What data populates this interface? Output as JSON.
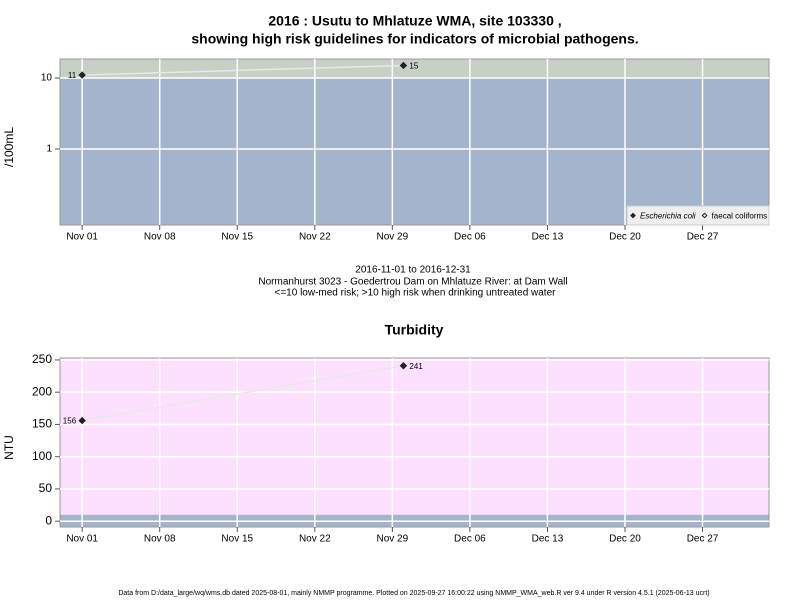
{
  "header": {
    "title": [
      "2016 : Usutu to Mhlatuze WMA, site 103330 ,",
      "showing high risk guidelines for indicators of microbial pathogens."
    ],
    "caption": [
      "2016-11-01 to 2016-12-31",
      "Normanhurst 3023 - Goedertrou Dam on Mhlatuze River: at Dam Wall",
      "<=10 low-med risk; >10 high risk when drinking untreated water"
    ]
  },
  "footer": "Data from D:/data_large/wq/wms.db dated 2025-08-01, mainly NMMP programme. Plotted on 2025-09-27 16:00:22 using NMMP_WMA_web.R ver 9.4 under R version 4.5.1 (2025-06-13 ucrt)",
  "chart_data": [
    {
      "type": "line",
      "ylabel": "/100mL",
      "log_scale": true,
      "guideline": 10,
      "above_color": "#c6d0c4",
      "below_color": "#a3b4cc",
      "grid": true,
      "legend": "bottom-right",
      "x": [
        "2016-11-01",
        "2016-11-30"
      ],
      "series": [
        {
          "name": "Escherichia coli",
          "color": "#222222",
          "marker": "filled",
          "values": [
            11,
            15
          ]
        },
        {
          "name": "faecal coliforms",
          "color": "#222222",
          "marker": "open",
          "values": [
            null,
            null
          ]
        }
      ],
      "xlim": [
        "2016-10-30",
        "2017-01-02"
      ],
      "xticks": [
        {
          "value": "2016-11-01",
          "label": "Nov 01"
        },
        {
          "value": "2016-11-08",
          "label": "Nov 08"
        },
        {
          "value": "2016-11-15",
          "label": "Nov 15"
        },
        {
          "value": "2016-11-22",
          "label": "Nov 22"
        },
        {
          "value": "2016-11-29",
          "label": "Nov 29"
        },
        {
          "value": "2016-12-06",
          "label": "Dec 06"
        },
        {
          "value": "2016-12-13",
          "label": "Dec 13"
        },
        {
          "value": "2016-12-20",
          "label": "Dec 20"
        },
        {
          "value": "2016-12-27",
          "label": "Dec 27"
        }
      ],
      "ylim": [
        0.085,
        18.5
      ],
      "yticks": [
        1,
        10
      ]
    },
    {
      "type": "line",
      "title": "Turbidity",
      "ylabel": "NTU",
      "log_scale": false,
      "guideline": 10,
      "above_color": "#fde0fd",
      "below_color": "#a3b4cc",
      "grid": true,
      "x": [
        "2016-11-01",
        "2016-11-30"
      ],
      "series": [
        {
          "color": "#222222",
          "marker": "filled",
          "values": [
            156,
            241
          ]
        }
      ],
      "xlim": [
        "2016-10-30",
        "2017-01-02"
      ],
      "xticks": [
        {
          "value": "2016-11-01",
          "label": "Nov 01"
        },
        {
          "value": "2016-11-08",
          "label": "Nov 08"
        },
        {
          "value": "2016-11-15",
          "label": "Nov 15"
        },
        {
          "value": "2016-11-22",
          "label": "Nov 22"
        },
        {
          "value": "2016-11-29",
          "label": "Nov 29"
        },
        {
          "value": "2016-12-06",
          "label": "Dec 06"
        },
        {
          "value": "2016-12-13",
          "label": "Dec 13"
        },
        {
          "value": "2016-12-20",
          "label": "Dec 20"
        },
        {
          "value": "2016-12-27",
          "label": "Dec 27"
        }
      ],
      "ylim": [
        -9,
        253
      ],
      "yticks": [
        0,
        50,
        100,
        150,
        200,
        250
      ]
    }
  ]
}
